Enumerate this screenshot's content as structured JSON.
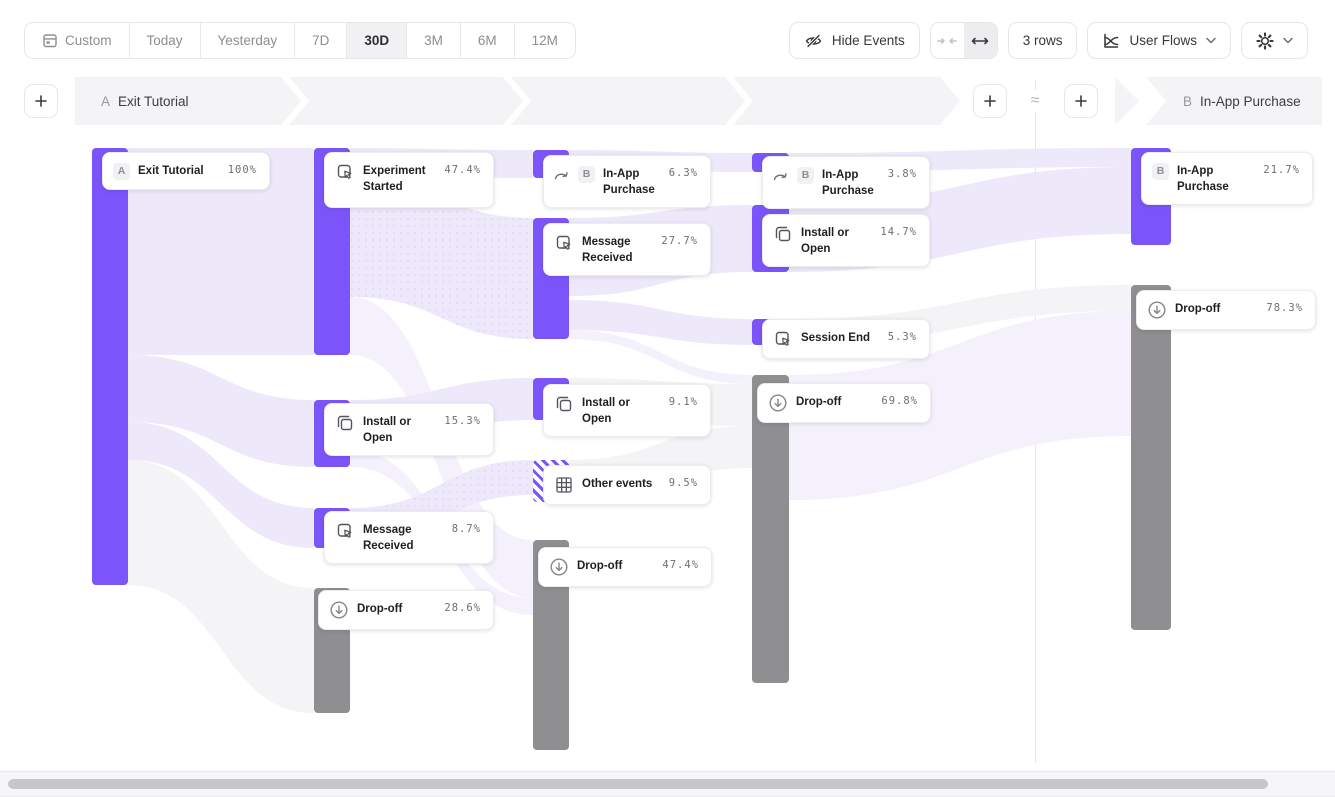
{
  "toolbar": {
    "date_ranges": [
      "Custom",
      "Today",
      "Yesterday",
      "7D",
      "30D",
      "3M",
      "6M",
      "12M"
    ],
    "active_range": "30D",
    "hide_events_label": "Hide Events",
    "rows_label": "3 rows",
    "view_label": "User Flows"
  },
  "header": {
    "flow_a": {
      "letter": "A",
      "name": "Exit Tutorial"
    },
    "flow_b": {
      "letter": "B",
      "name": "In-App Purchase"
    },
    "approx_symbol": "≈"
  },
  "colors": {
    "purple_bar": "#7b55fa",
    "gray_bar": "#8f8f92",
    "ribbon_purple": "#ede9fa",
    "ribbon_faint": "#f4f1fc",
    "ribbon_gray": "#f4f4f7"
  },
  "chart_data": {
    "type": "sankey",
    "title": "User Flows: A Exit Tutorial ≈ B In-App Purchase",
    "nodes": [
      {
        "id": "a1",
        "col": 1,
        "label": "Exit Tutorial",
        "value": "100%",
        "badge": "A",
        "icon": null,
        "color": "purple",
        "bar": [
          92,
          148,
          36,
          437
        ],
        "card": [
          102,
          152,
          168,
          38
        ]
      },
      {
        "id": "b1",
        "col": 2,
        "label": "Experiment Started",
        "value": "47.4%",
        "badge": null,
        "icon": "event",
        "color": "purple",
        "bar": [
          314,
          148,
          36,
          207
        ],
        "card": [
          324,
          152,
          170,
          56
        ]
      },
      {
        "id": "b2",
        "col": 2,
        "label": "Install or Open",
        "value": "15.3%",
        "badge": null,
        "icon": "install",
        "color": "purple",
        "bar": [
          314,
          400,
          36,
          67
        ],
        "card": [
          324,
          403,
          170,
          40
        ]
      },
      {
        "id": "b3",
        "col": 2,
        "label": "Message Received",
        "value": "8.7%",
        "badge": null,
        "icon": "event",
        "color": "purple",
        "bar": [
          314,
          508,
          36,
          40
        ],
        "card": [
          324,
          511,
          170,
          52
        ]
      },
      {
        "id": "b4",
        "col": 2,
        "label": "Drop-off",
        "value": "28.6%",
        "badge": null,
        "icon": "dropoff",
        "color": "gray",
        "bar": [
          314,
          588,
          36,
          125
        ],
        "card": [
          318,
          590,
          176,
          40
        ]
      },
      {
        "id": "c1",
        "col": 3,
        "label": "In-App Purchase",
        "value": "6.3%",
        "badge": "B",
        "icon": "purchase",
        "color": "purple",
        "bar": [
          533,
          150,
          36,
          28
        ],
        "card": [
          543,
          155,
          168,
          50
        ]
      },
      {
        "id": "c2",
        "col": 3,
        "label": "Message Received",
        "value": "27.7%",
        "badge": null,
        "icon": "event",
        "color": "purple",
        "bar": [
          533,
          218,
          36,
          121
        ],
        "card": [
          543,
          223,
          168,
          52
        ]
      },
      {
        "id": "c3",
        "col": 3,
        "label": "Install or Open",
        "value": "9.1%",
        "badge": null,
        "icon": "install",
        "color": "purple",
        "bar": [
          533,
          378,
          36,
          42
        ],
        "card": [
          543,
          384,
          168,
          40
        ]
      },
      {
        "id": "c4",
        "col": 3,
        "label": "Other events",
        "value": "9.5%",
        "badge": null,
        "icon": "grid",
        "color": "hatch",
        "bar": [
          533,
          460,
          36,
          42
        ],
        "card": [
          543,
          465,
          168,
          40
        ]
      },
      {
        "id": "c5",
        "col": 3,
        "label": "Drop-off",
        "value": "47.4%",
        "badge": null,
        "icon": "dropoff",
        "color": "gray",
        "bar": [
          533,
          540,
          36,
          210
        ],
        "card": [
          538,
          547,
          174,
          40
        ]
      },
      {
        "id": "d1",
        "col": 4,
        "label": "In-App Purchase",
        "value": "3.8%",
        "badge": "B",
        "icon": "purchase",
        "color": "purple",
        "bar": [
          752,
          153,
          37,
          19
        ],
        "card": [
          762,
          156,
          168,
          48
        ]
      },
      {
        "id": "d2",
        "col": 4,
        "label": "Install or Open",
        "value": "14.7%",
        "badge": null,
        "icon": "install",
        "color": "purple",
        "bar": [
          752,
          205,
          37,
          67
        ],
        "card": [
          762,
          214,
          168,
          40
        ]
      },
      {
        "id": "d3",
        "col": 4,
        "label": "Session End",
        "value": "5.3%",
        "badge": null,
        "icon": "event",
        "color": "purple",
        "bar": [
          752,
          319,
          37,
          26
        ],
        "card": [
          762,
          319,
          168,
          40
        ]
      },
      {
        "id": "d4",
        "col": 4,
        "label": "Drop-off",
        "value": "69.8%",
        "badge": null,
        "icon": "dropoff",
        "color": "gray",
        "bar": [
          752,
          375,
          37,
          308
        ],
        "card": [
          757,
          383,
          174,
          40
        ]
      },
      {
        "id": "e1",
        "col": 5,
        "label": "In-App Purchase",
        "value": "21.7%",
        "badge": "B",
        "icon": null,
        "color": "purple",
        "bar": [
          1131,
          148,
          40,
          97
        ],
        "card": [
          1141,
          152,
          172,
          40
        ]
      },
      {
        "id": "e2",
        "col": 5,
        "label": "Drop-off",
        "value": "78.3%",
        "badge": null,
        "icon": "dropoff",
        "color": "gray",
        "bar": [
          1131,
          285,
          40,
          345
        ],
        "card": [
          1136,
          290,
          180,
          40
        ]
      }
    ],
    "links": [
      {
        "from": "Exit Tutorial",
        "to": "Experiment Started",
        "tone": "purple",
        "dotted": false,
        "coords": [
          128,
          148,
          355,
          314,
          148,
          355
        ]
      },
      {
        "from": "Exit Tutorial",
        "to": "Install or Open",
        "tone": "purple",
        "dotted": false,
        "coords": [
          128,
          355,
          422,
          314,
          400,
          467
        ]
      },
      {
        "from": "Exit Tutorial",
        "to": "Message Received",
        "tone": "purple",
        "dotted": false,
        "coords": [
          128,
          422,
          460,
          314,
          508,
          548
        ]
      },
      {
        "from": "Exit Tutorial",
        "to": "Drop-off",
        "tone": "gray",
        "dotted": false,
        "coords": [
          128,
          460,
          585,
          314,
          588,
          713
        ]
      },
      {
        "from": "Experiment Started",
        "to": "In-App Purchase",
        "tone": "purple",
        "dotted": false,
        "coords": [
          350,
          148,
          176,
          533,
          150,
          178
        ]
      },
      {
        "from": "Experiment Started",
        "to": "Message Received",
        "tone": "purple",
        "dotted": true,
        "coords": [
          350,
          176,
          297,
          533,
          218,
          339
        ]
      },
      {
        "from": "Experiment Started",
        "to": "Drop-off",
        "tone": "faint",
        "dotted": false,
        "coords": [
          350,
          297,
          355,
          533,
          540,
          598
        ]
      },
      {
        "from": "Install or Open",
        "to": "Install or Open",
        "tone": "purple",
        "dotted": false,
        "coords": [
          350,
          400,
          450,
          533,
          378,
          420
        ]
      },
      {
        "from": "Install or Open",
        "to": "Drop-off",
        "tone": "faint",
        "dotted": false,
        "coords": [
          350,
          450,
          467,
          533,
          598,
          615
        ]
      },
      {
        "from": "Message Received",
        "to": "Other events",
        "tone": "purple",
        "dotted": true,
        "coords": [
          350,
          508,
          543,
          533,
          460,
          495
        ]
      },
      {
        "from": "In-App Purchase",
        "to": "In-App Purchase",
        "tone": "purple",
        "dotted": false,
        "coords": [
          569,
          150,
          170,
          752,
          153,
          172
        ]
      },
      {
        "from": "Message Received",
        "to": "Install or Open",
        "tone": "purple",
        "dotted": false,
        "coords": [
          569,
          218,
          296,
          752,
          205,
          272
        ]
      },
      {
        "from": "Message Received",
        "to": "Session End",
        "tone": "purple",
        "dotted": false,
        "coords": [
          569,
          300,
          330,
          752,
          319,
          345
        ]
      },
      {
        "from": "Message Received",
        "to": "Drop-off",
        "tone": "faint",
        "dotted": false,
        "coords": [
          569,
          330,
          339,
          752,
          375,
          384
        ]
      },
      {
        "from": "Install or Open",
        "to": "Drop-off",
        "tone": "gray",
        "dotted": false,
        "coords": [
          569,
          378,
          420,
          752,
          384,
          426
        ]
      },
      {
        "from": "Other events",
        "to": "Drop-off",
        "tone": "gray",
        "dotted": false,
        "coords": [
          569,
          460,
          502,
          752,
          426,
          468
        ]
      },
      {
        "from": "In-App Purchase",
        "to": "In-App Purchase",
        "tone": "purple",
        "dotted": false,
        "coords": [
          789,
          153,
          172,
          1131,
          148,
          167
        ]
      },
      {
        "from": "Install or Open",
        "to": "In-App Purchase",
        "tone": "purple",
        "dotted": false,
        "coords": [
          789,
          205,
          272,
          1131,
          167,
          234
        ]
      },
      {
        "from": "Session End",
        "to": "Drop-off",
        "tone": "gray",
        "dotted": false,
        "coords": [
          789,
          319,
          345,
          1131,
          285,
          311
        ]
      },
      {
        "from": "Drop-off",
        "to": "Drop-off",
        "tone": "faint",
        "dotted": false,
        "coords": [
          789,
          375,
          500,
          1131,
          311,
          436
        ]
      }
    ]
  }
}
